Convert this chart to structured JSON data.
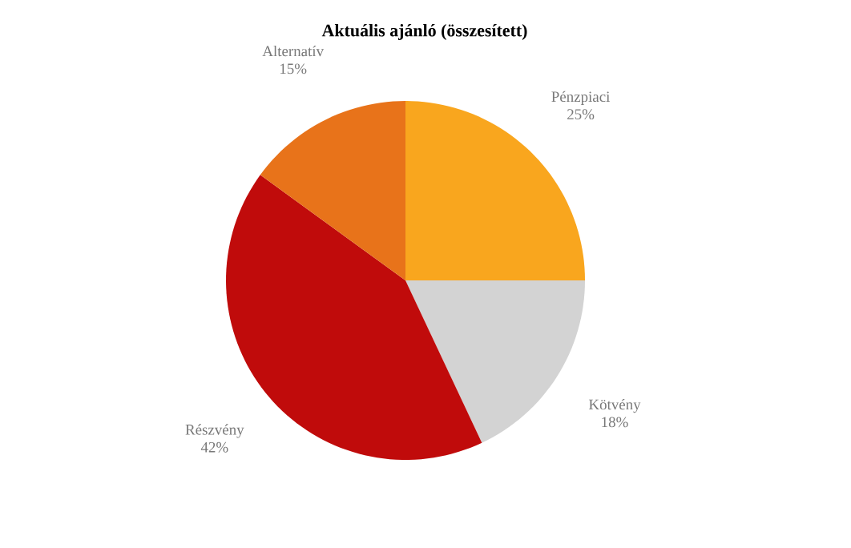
{
  "chart_data": {
    "type": "pie",
    "title": "Aktuális ajánló (összesített)",
    "categories": [
      "Pénzpiaci",
      "Kötvény",
      "Részvény",
      "Alternatív"
    ],
    "values": [
      25,
      18,
      42,
      15
    ],
    "value_labels": [
      "25%",
      "18%",
      "42%",
      "15%"
    ],
    "colors": [
      "#f9a61e",
      "#d3d3d3",
      "#c00b0b",
      "#e8731a"
    ]
  }
}
